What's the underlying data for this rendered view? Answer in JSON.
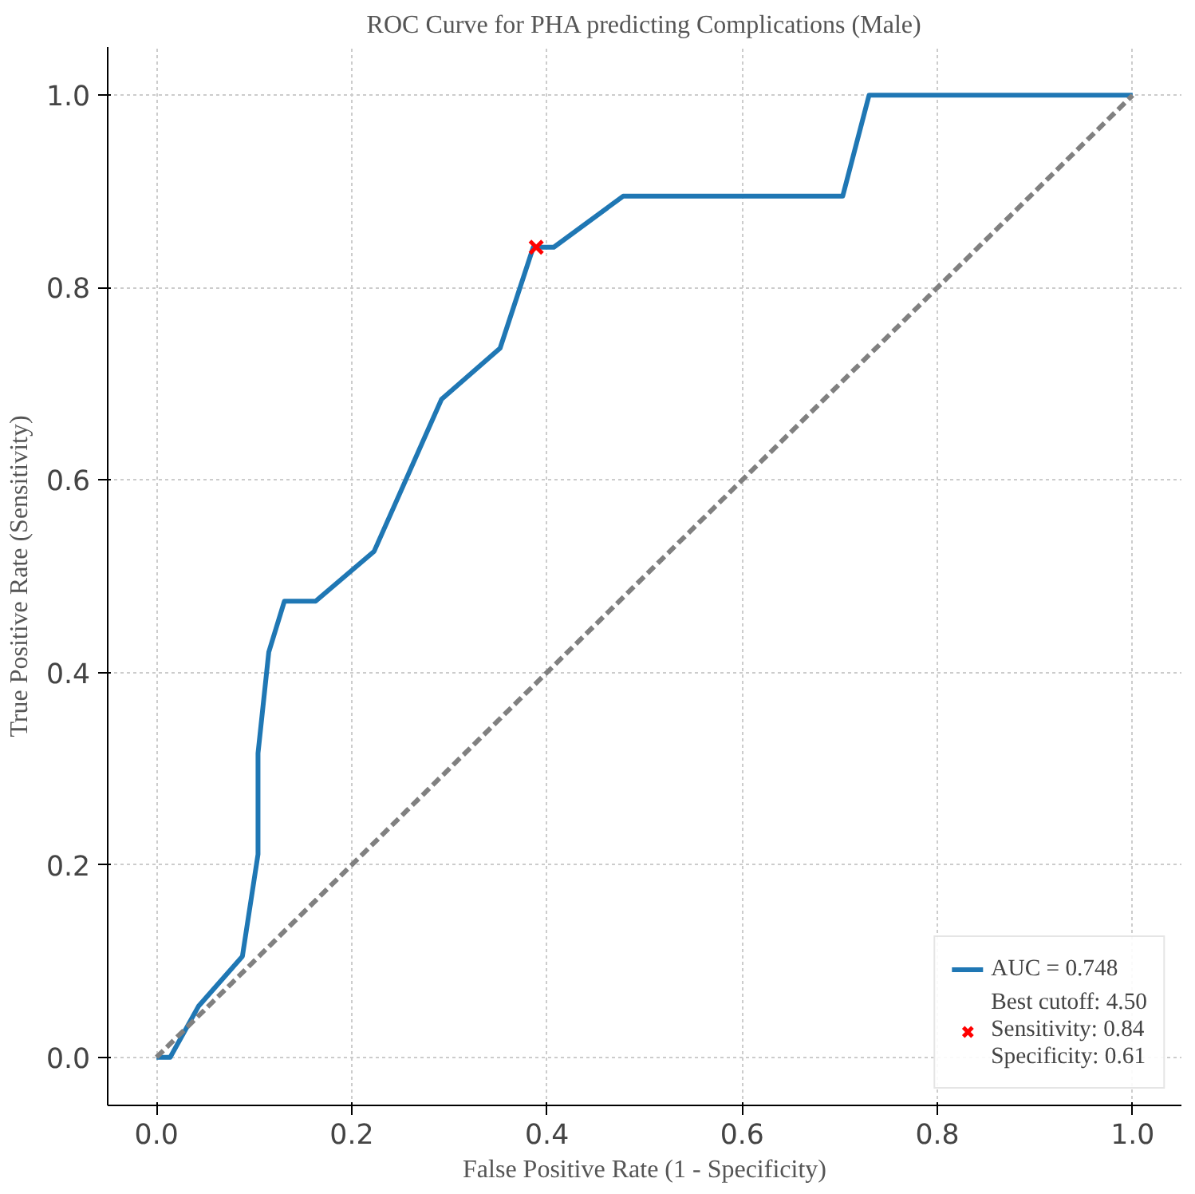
{
  "chart_data": {
    "type": "line",
    "title": "ROC Curve for PHA predicting Complications (Male)",
    "xlabel": "False Positive Rate (1 - Specificity)",
    "ylabel": "True Positive Rate (Sensitivity)",
    "xlim": [
      -0.05,
      1.05
    ],
    "ylim": [
      -0.05,
      1.05
    ],
    "xticks": [
      {
        "value": 0,
        "label": "0.0"
      },
      {
        "value": 0.2,
        "label": "0.2"
      },
      {
        "value": 0.4,
        "label": "0.4"
      },
      {
        "value": 0.6,
        "label": "0.6"
      },
      {
        "value": 0.8,
        "label": "0.8"
      },
      {
        "value": 1,
        "label": "1.0"
      }
    ],
    "yticks": [
      {
        "value": 0,
        "label": "0.0"
      },
      {
        "value": 0.2,
        "label": "0.2"
      },
      {
        "value": 0.4,
        "label": "0.4"
      },
      {
        "value": 0.6,
        "label": "0.6"
      },
      {
        "value": 0.8,
        "label": "0.8"
      },
      {
        "value": 1,
        "label": "1.0"
      }
    ],
    "grid": true,
    "legend": "bottom right",
    "series": [
      {
        "name": "AUC = 0.748",
        "color": "#1f77b4",
        "line_style": "solid",
        "x": [
          0,
          0.014,
          0.043,
          0.088,
          0.104,
          0.104,
          0.115,
          0.131,
          0.163,
          0.223,
          0.292,
          0.352,
          0.386,
          0.407,
          0.478,
          0.703,
          0.73,
          1
        ],
        "values": [
          0,
          0,
          0.053,
          0.105,
          0.211,
          0.316,
          0.421,
          0.474,
          0.474,
          0.526,
          0.684,
          0.737,
          0.842,
          0.842,
          0.895,
          0.895,
          1,
          1
        ]
      },
      {
        "color": "#808080",
        "line_style": "dashed",
        "x": [
          0,
          1
        ],
        "values": [
          0,
          1
        ]
      },
      {
        "name": "Best cutoff: 4.50\nSensitivity: 0.84\nSpecificity: 0.61",
        "type": "scatter",
        "marker": "cross",
        "color": "#ff0000",
        "x": [
          0.389
        ],
        "values": [
          0.842
        ]
      }
    ]
  }
}
